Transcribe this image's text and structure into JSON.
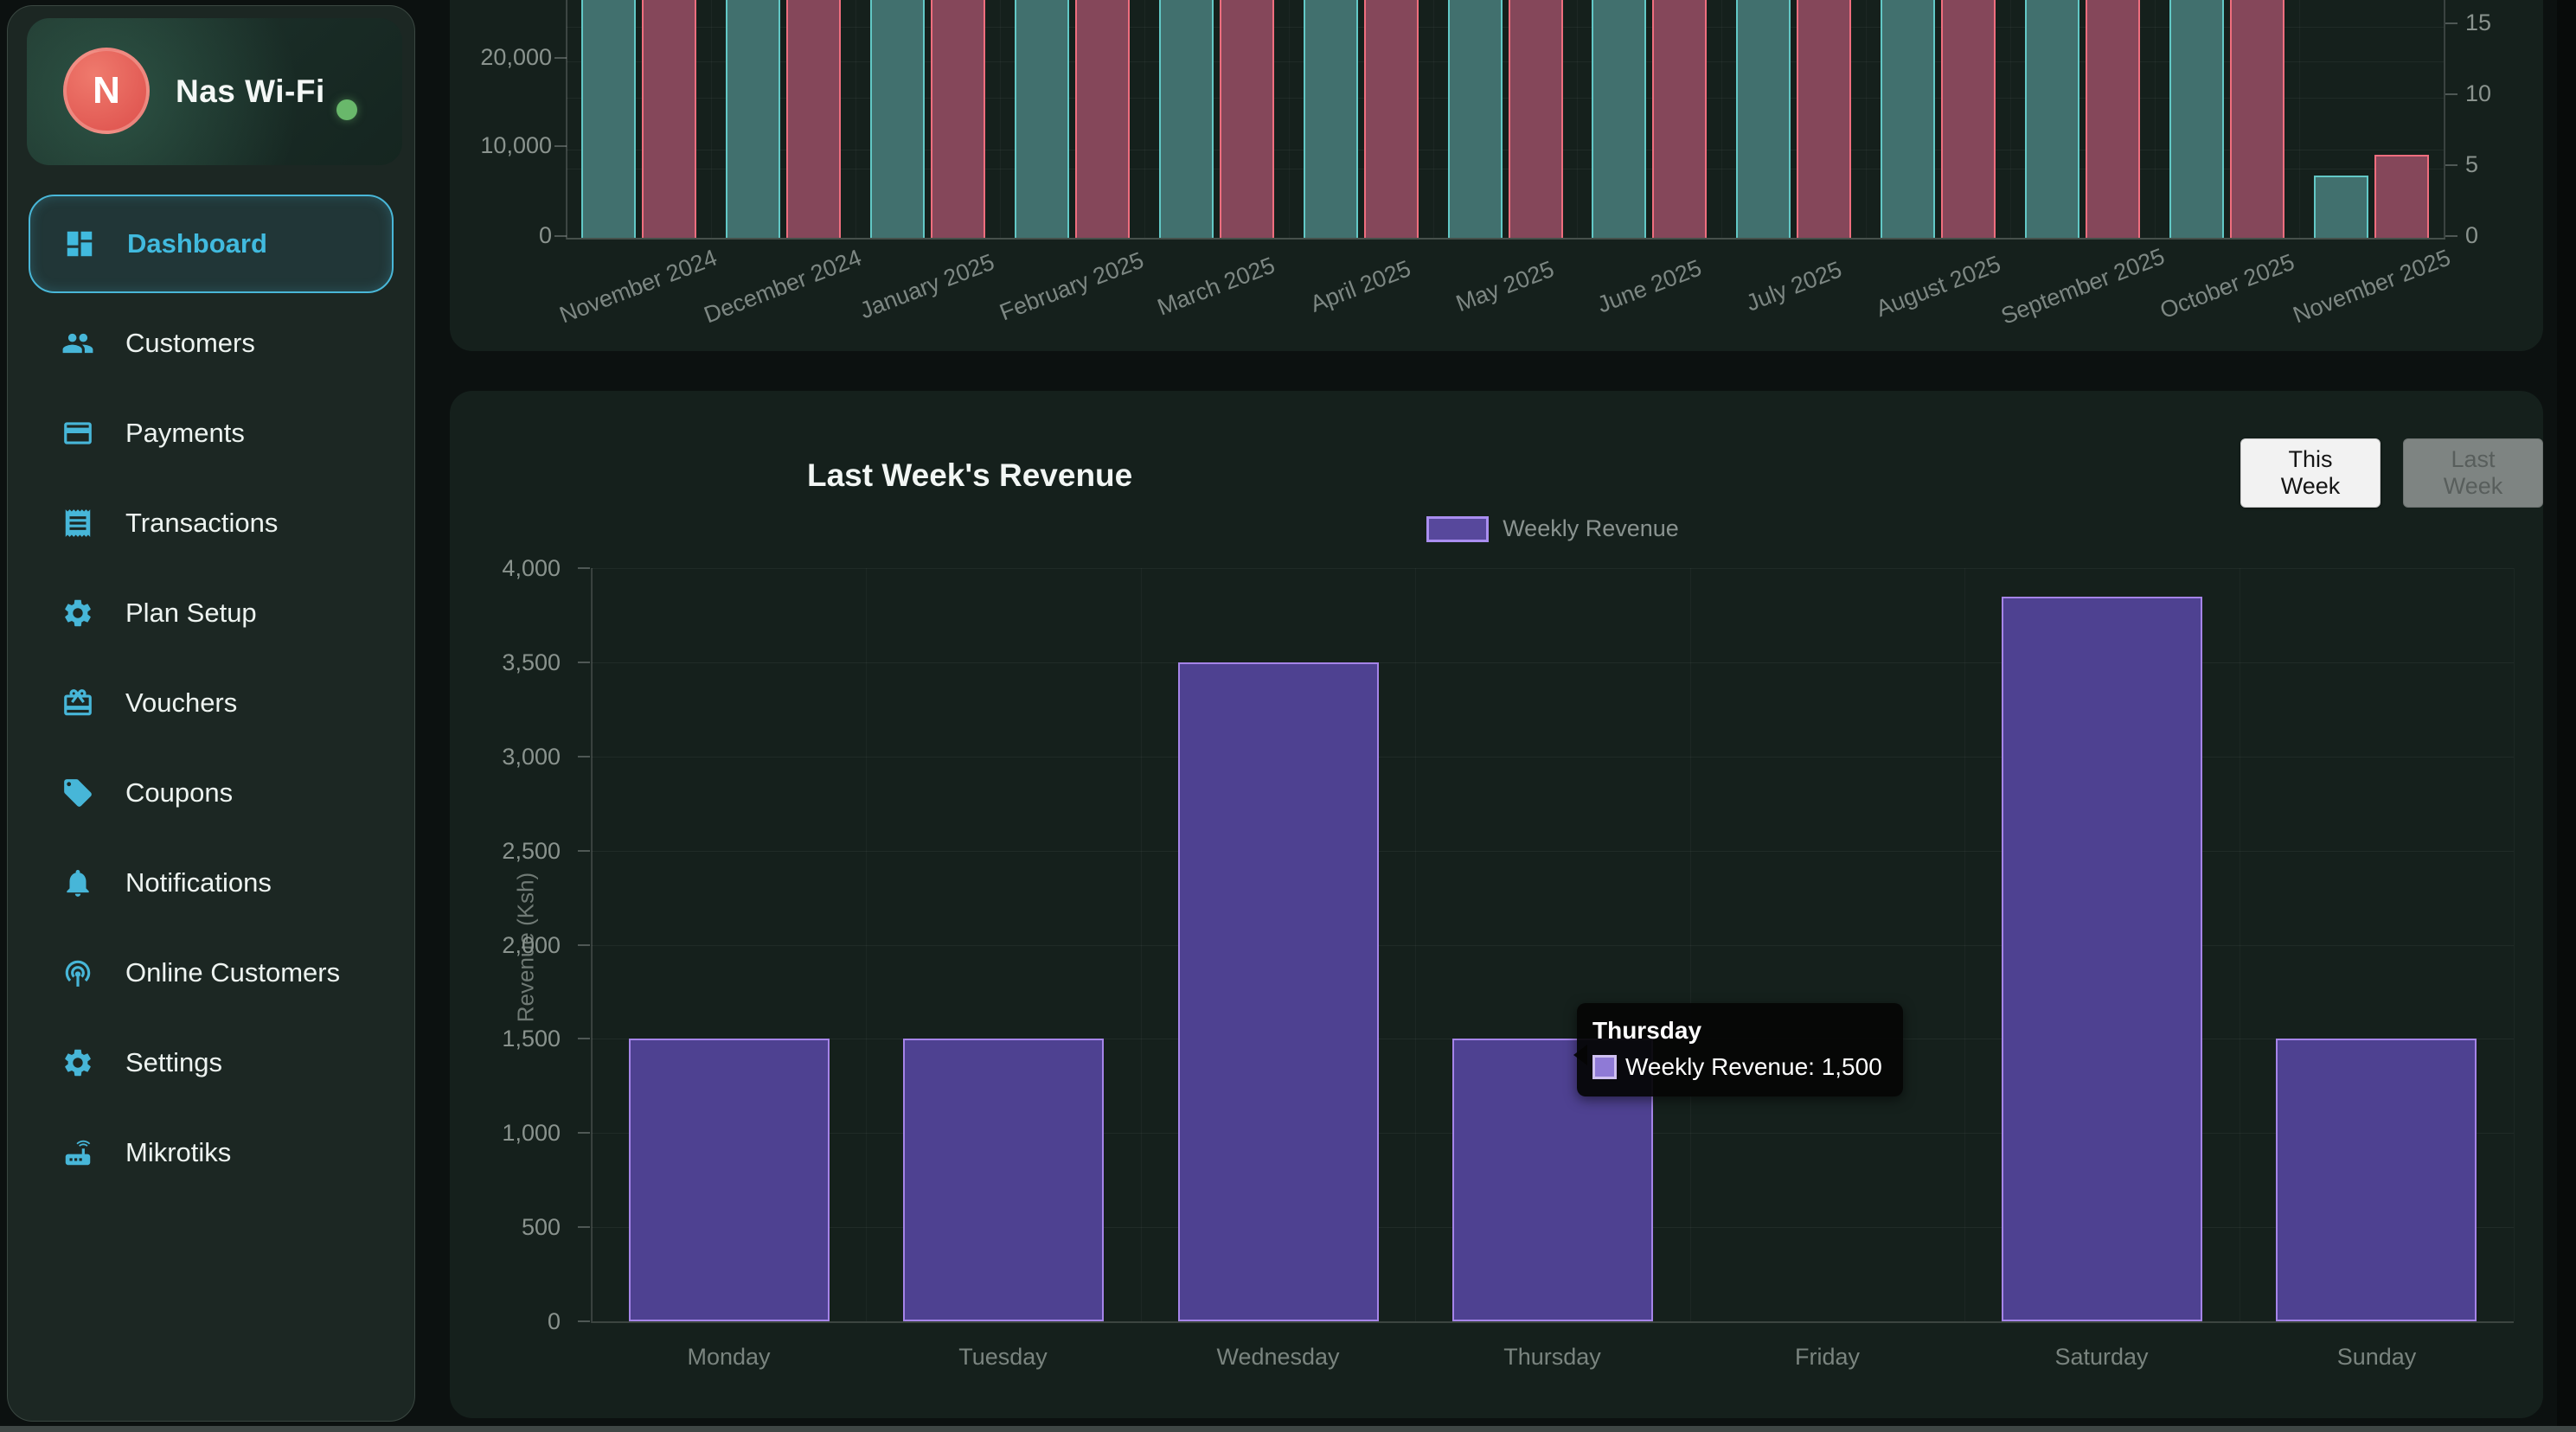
{
  "sidebar": {
    "brand": {
      "initial": "N",
      "name": "Nas Wi-Fi",
      "status": "online"
    },
    "items": [
      {
        "label": "Dashboard",
        "icon": "dashboard-icon",
        "active": true
      },
      {
        "label": "Customers",
        "icon": "people-icon",
        "active": false
      },
      {
        "label": "Payments",
        "icon": "credit-card-icon",
        "active": false
      },
      {
        "label": "Transactions",
        "icon": "receipt-icon",
        "active": false
      },
      {
        "label": "Plan Setup",
        "icon": "gear-icon",
        "active": false
      },
      {
        "label": "Vouchers",
        "icon": "giftcard-icon",
        "active": false
      },
      {
        "label": "Coupons",
        "icon": "tag-icon",
        "active": false
      },
      {
        "label": "Notifications",
        "icon": "bell-icon",
        "active": false
      },
      {
        "label": "Online Customers",
        "icon": "wifi-icon",
        "active": false
      },
      {
        "label": "Settings",
        "icon": "gear-icon",
        "active": false
      },
      {
        "label": "Mikrotiks",
        "icon": "router-icon",
        "active": false
      }
    ]
  },
  "colors": {
    "accent_teal": "#47b6d8",
    "active_text": "#41bade",
    "avatar_red": "#dd4f4b",
    "status_green": "#69b86b",
    "bar_teal_fill": "#41706e",
    "bar_teal_border": "#62c8c6",
    "bar_red_fill": "#85475a",
    "bar_red_border": "#ef6e7e",
    "bar_purple_fill": "#4e4191",
    "bar_purple_border": "#a584e8"
  },
  "chart_data": [
    {
      "type": "bar",
      "name": "monthly-overview",
      "categories": [
        "November 2024",
        "December 2024",
        "January 2025",
        "February 2025",
        "March 2025",
        "April 2025",
        "May 2025",
        "June 2025",
        "July 2025",
        "August 2025",
        "September 2025",
        "October 2025",
        "November 2025"
      ],
      "series": [
        {
          "name": "teal-series",
          "fill": "#41706e",
          "stroke": "#62c8c6",
          "values": [
            null,
            null,
            null,
            null,
            null,
            null,
            null,
            null,
            null,
            null,
            null,
            null,
            4.5
          ]
        },
        {
          "name": "red-series",
          "fill": "#85475a",
          "stroke": "#ef6e7e",
          "values": [
            null,
            null,
            null,
            null,
            null,
            null,
            null,
            null,
            null,
            null,
            null,
            null,
            6
          ]
        }
      ],
      "left_axis": {
        "tick_labels": [
          "20,000",
          "10,000",
          "0"
        ],
        "tick_values": [
          20000,
          10000,
          0
        ]
      },
      "right_axis": {
        "tick_labels": [
          "15",
          "10",
          "5",
          "0"
        ],
        "tick_values": [
          15,
          10,
          5,
          0
        ],
        "range": [
          0,
          15
        ]
      },
      "note": "Bars for Nov 2024 through Oct 2025 extend above the visible top edge of the viewport (clipped); November 2025 bars read ~4.5 (teal) and ~6 (red) on the right axis.",
      "grid": true,
      "legend_position": "none"
    },
    {
      "type": "bar",
      "name": "weekly-revenue",
      "title": "Last Week's Revenue",
      "categories": [
        "Monday",
        "Tuesday",
        "Wednesday",
        "Thursday",
        "Friday",
        "Saturday",
        "Sunday"
      ],
      "series": [
        {
          "name": "Weekly Revenue",
          "fill": "#4e4191",
          "stroke": "#a584e8",
          "values": [
            1500,
            1500,
            3500,
            1500,
            0,
            3850,
            1500
          ]
        }
      ],
      "xlabel": "",
      "ylabel": "Revenue (Ksh)",
      "ylim": [
        0,
        4000
      ],
      "ytick_step": 500,
      "ytick_labels": [
        "4,000",
        "3,500",
        "3,000",
        "2,500",
        "2,000",
        "1,500",
        "1,000",
        "500",
        "0"
      ],
      "grid": true,
      "legend": {
        "label": "Weekly Revenue",
        "position": "top-center"
      },
      "buttons": {
        "this_week": "This Week",
        "last_week": "Last Week"
      },
      "tooltip": {
        "title": "Thursday",
        "label": "Weekly Revenue: 1,500",
        "value": 1500
      }
    }
  ]
}
